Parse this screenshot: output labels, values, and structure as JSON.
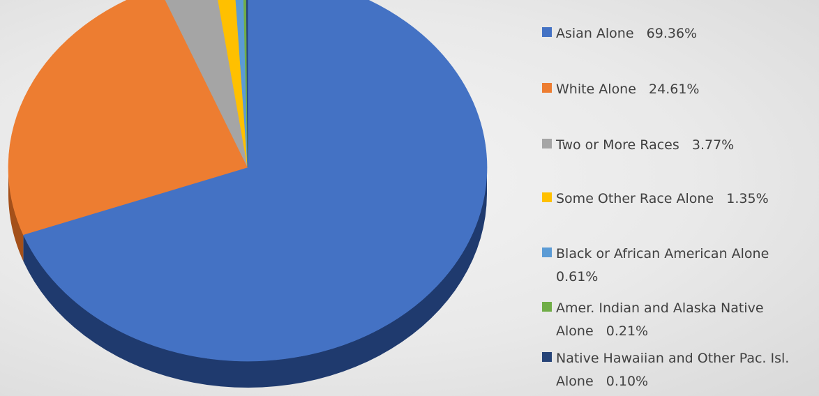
{
  "chart_data": {
    "type": "pie",
    "title": "",
    "three_d": true,
    "start_angle_deg": 0,
    "direction": "clockwise",
    "slices": [
      {
        "label": "Asian Alone",
        "value": 69.36,
        "value_label": "69.36%",
        "color": "#4472C4",
        "side_color": "#1F3A6E"
      },
      {
        "label": "White Alone",
        "value": 24.61,
        "value_label": "24.61%",
        "color": "#ED7D31",
        "side_color": "#A4501A"
      },
      {
        "label": "Two or More Races",
        "value": 3.77,
        "value_label": "3.77%",
        "color": "#A5A5A5",
        "side_color": "#6E6E6E"
      },
      {
        "label": "Some Other Race Alone",
        "value": 1.35,
        "value_label": "1.35%",
        "color": "#FFC000",
        "side_color": "#B38600"
      },
      {
        "label": "Black or African American Alone",
        "value": 0.61,
        "value_label": "0.61%",
        "color": "#5B9BD5",
        "side_color": "#2E6A9E"
      },
      {
        "label": "Amer. Indian and Alaska Native Alone",
        "value": 0.21,
        "value_label": "0.21%",
        "color": "#70AD47",
        "side_color": "#457A27"
      },
      {
        "label": "Native Hawaiian and Other Pac. Isl. Alone",
        "value": 0.1,
        "value_label": "0.10%",
        "color": "#264478",
        "side_color": "#132442"
      }
    ],
    "legend": {
      "position": "right",
      "entries": [
        {
          "text": "Asian Alone   69.36%"
        },
        {
          "text": "White Alone   24.61%"
        },
        {
          "text": "Two or More Races   3.77%"
        },
        {
          "text": "Some Other Race Alone   1.35%"
        },
        {
          "text": "Black or African American Alone\n0.61%"
        },
        {
          "text": "Amer. Indian and Alaska Native\nAlone   0.21%"
        },
        {
          "text": "Native Hawaiian and Other Pac. Isl.\nAlone   0.10%"
        }
      ]
    }
  }
}
